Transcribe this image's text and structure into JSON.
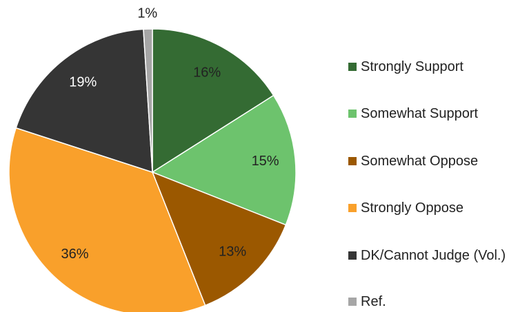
{
  "chart_data": {
    "type": "pie",
    "categories": [
      "Strongly Support",
      "Somewhat Support",
      "Somewhat Oppose",
      "Strongly Oppose",
      "DK/Cannot Judge (Vol.)",
      "Ref."
    ],
    "values": [
      16,
      15,
      13,
      36,
      19,
      1
    ],
    "value_labels": [
      "16%",
      "15%",
      "13%",
      "36%",
      "19%",
      "1%"
    ],
    "colors": [
      "#346b33",
      "#6dc36d",
      "#9b5800",
      "#f9a02b",
      "#353535",
      "#a6a6a6"
    ],
    "legend": "right"
  }
}
